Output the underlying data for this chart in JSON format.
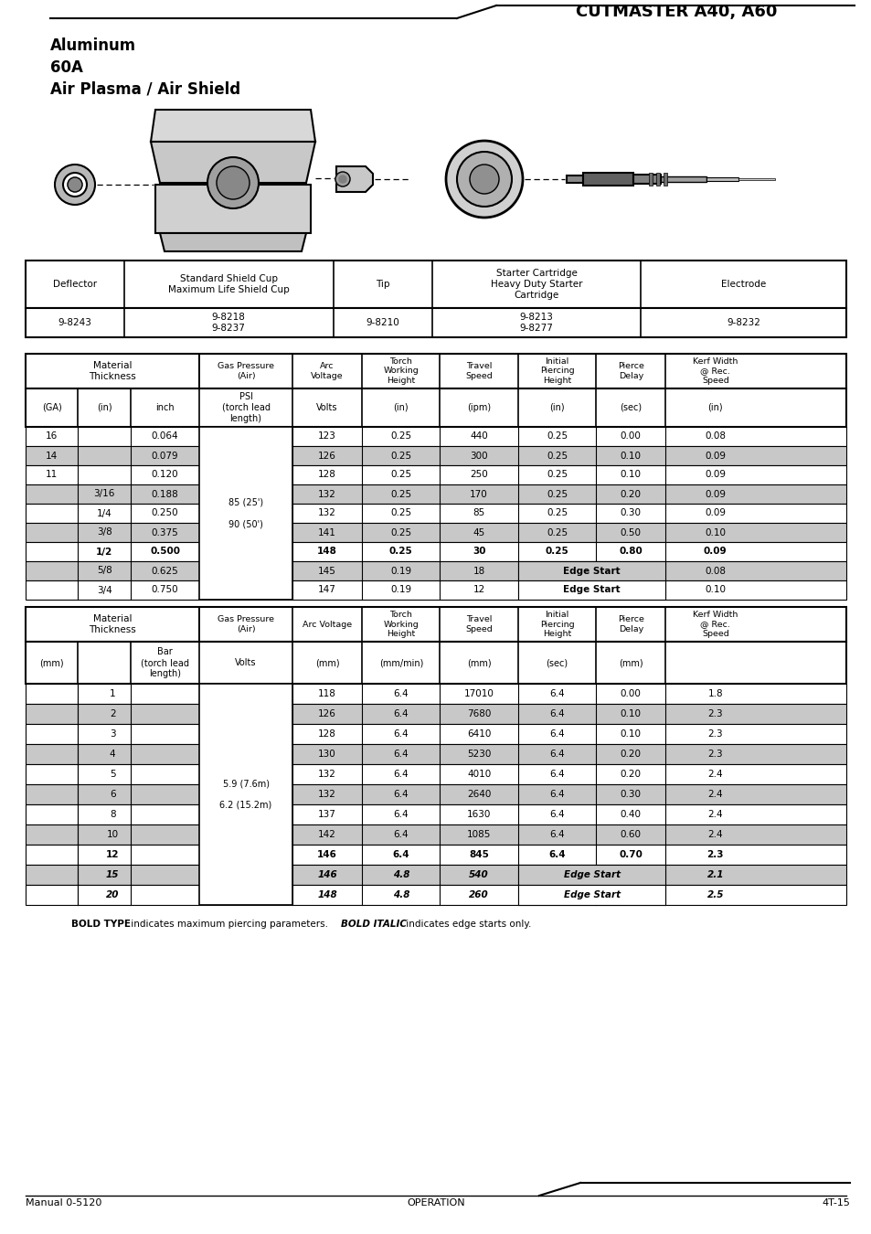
{
  "title": "CUTMASTER A40, A60",
  "subtitle_lines": [
    "Aluminum",
    "60A",
    "Air Plasma / Air Shield"
  ],
  "parts_headers": [
    "Deflector",
    "Standard Shield Cup\nMaximum Life Shield Cup",
    "Tip",
    "Starter Cartridge\nHeavy Duty Starter\nCartridge",
    "Electrode"
  ],
  "parts_values": [
    "9-8243",
    "9-8218\n9-8237",
    "9-8210",
    "9-8213\n9-8277",
    "9-8232"
  ],
  "imp_hdr1": [
    "Material\nThickness",
    "Gas Pressure\n(Air)",
    "Arc\nVoltage",
    "Torch\nWorking\nHeight",
    "Travel\nSpeed",
    "Initial\nPiercing\nHeight",
    "Pierce\nDelay",
    "Kerf Width\n@ Rec.\nSpeed"
  ],
  "imp_hdr2": [
    "(GA)",
    "(in)",
    "inch",
    "PSI\n(torch lead\nlength)",
    "Volts",
    "(in)",
    "(ipm)",
    "(in)",
    "(sec)",
    "(in)"
  ],
  "imp_rows": [
    {
      "ga": "16",
      "in_": "",
      "inch": "0.064",
      "volts": "123",
      "twh": "0.25",
      "ts": "440",
      "iph": "0.25",
      "pd": "0.00",
      "kw": "0.08",
      "shade": false,
      "bold": false,
      "edge": false
    },
    {
      "ga": "14",
      "in_": "",
      "inch": "0.079",
      "volts": "126",
      "twh": "0.25",
      "ts": "300",
      "iph": "0.25",
      "pd": "0.10",
      "kw": "0.09",
      "shade": true,
      "bold": false,
      "edge": false
    },
    {
      "ga": "11",
      "in_": "",
      "inch": "0.120",
      "volts": "128",
      "twh": "0.25",
      "ts": "250",
      "iph": "0.25",
      "pd": "0.10",
      "kw": "0.09",
      "shade": false,
      "bold": false,
      "edge": false
    },
    {
      "ga": "",
      "in_": "3/16",
      "inch": "0.188",
      "volts": "132",
      "twh": "0.25",
      "ts": "170",
      "iph": "0.25",
      "pd": "0.20",
      "kw": "0.09",
      "shade": true,
      "bold": false,
      "edge": false
    },
    {
      "ga": "",
      "in_": "1/4",
      "inch": "0.250",
      "volts": "132",
      "twh": "0.25",
      "ts": "85",
      "iph": "0.25",
      "pd": "0.30",
      "kw": "0.09",
      "shade": false,
      "bold": false,
      "edge": false
    },
    {
      "ga": "",
      "in_": "3/8",
      "inch": "0.375",
      "volts": "141",
      "twh": "0.25",
      "ts": "45",
      "iph": "0.25",
      "pd": "0.50",
      "kw": "0.10",
      "shade": true,
      "bold": false,
      "edge": false
    },
    {
      "ga": "",
      "in_": "1/2",
      "inch": "0.500",
      "volts": "148",
      "twh": "0.25",
      "ts": "30",
      "iph": "0.25",
      "pd": "0.80",
      "kw": "0.09",
      "shade": false,
      "bold": true,
      "edge": false
    },
    {
      "ga": "",
      "in_": "5/8",
      "inch": "0.625",
      "volts": "145",
      "twh": "0.19",
      "ts": "18",
      "iph": "",
      "pd": "",
      "kw": "0.08",
      "shade": true,
      "bold": false,
      "edge": true
    },
    {
      "ga": "",
      "in_": "3/4",
      "inch": "0.750",
      "volts": "147",
      "twh": "0.19",
      "ts": "12",
      "iph": "",
      "pd": "",
      "kw": "0.10",
      "shade": false,
      "bold": false,
      "edge": true
    }
  ],
  "imp_psi": "85 (25')\n\n90 (50')",
  "met_hdr1": [
    "Material\nThickness",
    "Gas Pressure\n(Air)",
    "Arc Voltage",
    "Torch\nWorking\nHeight",
    "Travel\nSpeed",
    "Initial\nPiercing\nHeight",
    "Pierce\nDelay",
    "Kerf Width\n@ Rec.\nSpeed"
  ],
  "met_hdr2": [
    "(mm)",
    "",
    "Bar\n(torch lead\nlength)",
    "Volts",
    "(mm)",
    "(mm/min)",
    "(mm)",
    "(sec)",
    "(mm)"
  ],
  "met_rows": [
    {
      "mm": "1",
      "volts": "118",
      "twh": "6.4",
      "ts": "17010",
      "iph": "6.4",
      "pd": "0.00",
      "kw": "1.8",
      "shade": false,
      "bold": false,
      "edge": false
    },
    {
      "mm": "2",
      "volts": "126",
      "twh": "6.4",
      "ts": "7680",
      "iph": "6.4",
      "pd": "0.10",
      "kw": "2.3",
      "shade": true,
      "bold": false,
      "edge": false
    },
    {
      "mm": "3",
      "volts": "128",
      "twh": "6.4",
      "ts": "6410",
      "iph": "6.4",
      "pd": "0.10",
      "kw": "2.3",
      "shade": false,
      "bold": false,
      "edge": false
    },
    {
      "mm": "4",
      "volts": "130",
      "twh": "6.4",
      "ts": "5230",
      "iph": "6.4",
      "pd": "0.20",
      "kw": "2.3",
      "shade": true,
      "bold": false,
      "edge": false
    },
    {
      "mm": "5",
      "volts": "132",
      "twh": "6.4",
      "ts": "4010",
      "iph": "6.4",
      "pd": "0.20",
      "kw": "2.4",
      "shade": false,
      "bold": false,
      "edge": false
    },
    {
      "mm": "6",
      "volts": "132",
      "twh": "6.4",
      "ts": "2640",
      "iph": "6.4",
      "pd": "0.30",
      "kw": "2.4",
      "shade": true,
      "bold": false,
      "edge": false
    },
    {
      "mm": "8",
      "volts": "137",
      "twh": "6.4",
      "ts": "1630",
      "iph": "6.4",
      "pd": "0.40",
      "kw": "2.4",
      "shade": false,
      "bold": false,
      "edge": false
    },
    {
      "mm": "10",
      "volts": "142",
      "twh": "6.4",
      "ts": "1085",
      "iph": "6.4",
      "pd": "0.60",
      "kw": "2.4",
      "shade": true,
      "bold": false,
      "edge": false
    },
    {
      "mm": "12",
      "volts": "146",
      "twh": "6.4",
      "ts": "845",
      "iph": "6.4",
      "pd": "0.70",
      "kw": "2.3",
      "shade": false,
      "bold": true,
      "edge": false
    },
    {
      "mm": "15",
      "volts": "146",
      "twh": "4.8",
      "ts": "540",
      "iph": "",
      "pd": "",
      "kw": "2.1",
      "shade": true,
      "bold": true,
      "edge": true
    },
    {
      "mm": "20",
      "volts": "148",
      "twh": "4.8",
      "ts": "260",
      "iph": "",
      "pd": "",
      "kw": "2.5",
      "shade": false,
      "bold": true,
      "edge": true
    }
  ],
  "met_bar": "5.9 (7.6m)\n\n6.2 (15.2m)",
  "shade_color": "#c8c8c8",
  "footer_left": "Manual 0-5120",
  "footer_center": "OPERATION",
  "footer_right": "4T-15"
}
